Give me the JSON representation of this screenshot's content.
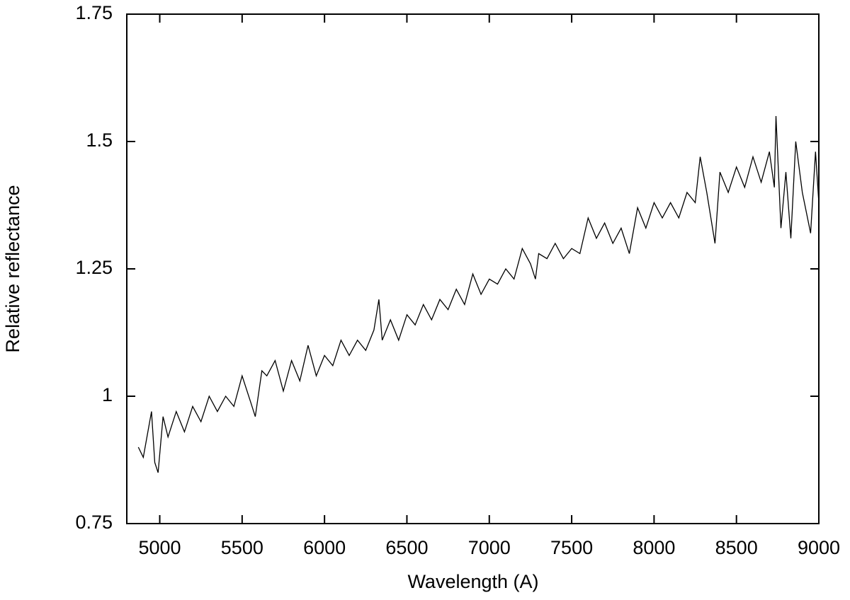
{
  "chart_data": {
    "type": "line",
    "x_label": "Wavelength (A)",
    "y_label": "Relative reflectance",
    "xlim": [
      4800,
      9000
    ],
    "xticks": [
      5000,
      5500,
      6000,
      6500,
      7000,
      7500,
      8000,
      8500,
      9000
    ],
    "ylim": [
      0.75,
      1.75
    ],
    "yticks": [
      0.75,
      1,
      1.25,
      1.5,
      1.75
    ],
    "color": "#000000",
    "x": [
      4870,
      4900,
      4950,
      4970,
      4990,
      5020,
      5050,
      5100,
      5150,
      5200,
      5250,
      5300,
      5350,
      5400,
      5450,
      5500,
      5550,
      5580,
      5620,
      5650,
      5700,
      5750,
      5800,
      5850,
      5900,
      5950,
      6000,
      6050,
      6100,
      6150,
      6200,
      6250,
      6300,
      6330,
      6350,
      6400,
      6450,
      6500,
      6550,
      6600,
      6650,
      6700,
      6750,
      6800,
      6850,
      6900,
      6950,
      7000,
      7050,
      7100,
      7150,
      7200,
      7250,
      7280,
      7300,
      7350,
      7400,
      7450,
      7500,
      7550,
      7600,
      7650,
      7700,
      7750,
      7800,
      7850,
      7900,
      7950,
      8000,
      8050,
      8100,
      8150,
      8200,
      8250,
      8280,
      8320,
      8370,
      8400,
      8450,
      8500,
      8550,
      8600,
      8650,
      8700,
      8730,
      8740,
      8770,
      8800,
      8830,
      8860,
      8900,
      8950,
      8980,
      9000
    ],
    "values": [
      0.9,
      0.88,
      0.97,
      0.87,
      0.85,
      0.96,
      0.92,
      0.97,
      0.93,
      0.98,
      0.95,
      1.0,
      0.97,
      1.0,
      0.98,
      1.04,
      0.99,
      0.96,
      1.05,
      1.04,
      1.07,
      1.01,
      1.07,
      1.03,
      1.1,
      1.04,
      1.08,
      1.06,
      1.11,
      1.08,
      1.11,
      1.09,
      1.13,
      1.19,
      1.11,
      1.15,
      1.11,
      1.16,
      1.14,
      1.18,
      1.15,
      1.19,
      1.17,
      1.21,
      1.18,
      1.24,
      1.2,
      1.23,
      1.22,
      1.25,
      1.23,
      1.29,
      1.26,
      1.23,
      1.28,
      1.27,
      1.3,
      1.27,
      1.29,
      1.28,
      1.35,
      1.31,
      1.34,
      1.3,
      1.33,
      1.28,
      1.37,
      1.33,
      1.38,
      1.35,
      1.38,
      1.35,
      1.4,
      1.38,
      1.47,
      1.4,
      1.3,
      1.44,
      1.4,
      1.45,
      1.41,
      1.47,
      1.42,
      1.48,
      1.41,
      1.55,
      1.33,
      1.44,
      1.31,
      1.5,
      1.4,
      1.32,
      1.48,
      1.38
    ]
  }
}
